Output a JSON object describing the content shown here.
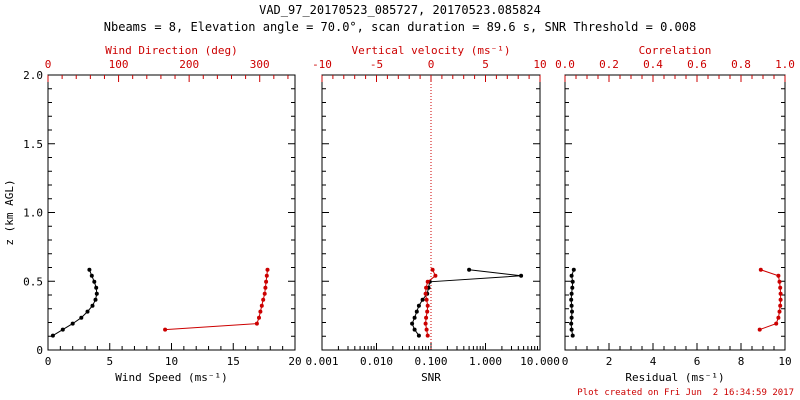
{
  "header": {
    "title": "VAD_97_20170523_085727, 20170523.085824",
    "subtitle": "Nbeams = 8, Elevation angle = 70.0°, scan duration = 89.6 s, SNR Threshold = 0.008"
  },
  "footer": {
    "created": "Plot created on Fri Jun  2 16:34:59 2017"
  },
  "colors": {
    "black": "#000000",
    "red": "#cc0000"
  },
  "chart_data": [
    {
      "type": "line",
      "panel": "wind",
      "ylabel": "z (km AGL)",
      "ylim": [
        0,
        2
      ],
      "yticks": [
        0,
        0.5,
        1,
        1.5,
        2
      ],
      "ytick_labels": [
        "0",
        "0.5",
        "1.0",
        "1.5",
        "2.0"
      ],
      "yminor": 0.1,
      "bottom_axis": {
        "label": "Wind Speed (ms⁻¹)",
        "scale": "linear",
        "range": [
          0,
          20
        ],
        "ticks": [
          0,
          5,
          10,
          15,
          20
        ],
        "tick_labels": [
          "0",
          "5",
          "10",
          "15",
          "20"
        ],
        "minor": 1,
        "color": "black"
      },
      "top_axis": {
        "label": "Wind Direction (deg)",
        "scale": "linear",
        "range": [
          0,
          350
        ],
        "ticks": [
          0,
          100,
          200,
          300
        ],
        "tick_labels": [
          "0",
          "100",
          "200",
          "300"
        ],
        "minor": 20,
        "color": "red"
      },
      "series": [
        {
          "name": "wind_speed",
          "axis": "bottom",
          "color": "black",
          "z": [
            0.105,
            0.148,
            0.192,
            0.235,
            0.279,
            0.322,
            0.366,
            0.409,
            0.453,
            0.496,
            0.54,
            0.583
          ],
          "values": [
            0.4,
            1.2,
            2.0,
            2.7,
            3.2,
            3.6,
            3.85,
            3.95,
            3.9,
            3.75,
            3.55,
            3.35
          ]
        },
        {
          "name": "wind_direction",
          "axis": "top",
          "color": "red",
          "z": [
            0.148,
            0.192,
            0.235,
            0.279,
            0.322,
            0.366,
            0.409,
            0.453,
            0.496,
            0.54,
            0.583
          ],
          "values": [
            166,
            296,
            299,
            301,
            303,
            305,
            307,
            308,
            309,
            310,
            311
          ]
        }
      ]
    },
    {
      "type": "line",
      "panel": "snr",
      "ylabel": "",
      "ylim": [
        0,
        2
      ],
      "yticks": [
        0,
        0.5,
        1,
        1.5,
        2
      ],
      "ytick_labels": [
        "0",
        "0.5",
        "1.0",
        "1.5",
        "2.0"
      ],
      "yminor": 0.1,
      "bottom_axis": {
        "label": "SNR",
        "scale": "log",
        "range": [
          0.001,
          10
        ],
        "ticks": [
          0.001,
          0.01,
          0.1,
          1,
          10
        ],
        "tick_labels": [
          "0.001",
          "0.010",
          "0.100",
          "1.000",
          "10.000"
        ],
        "color": "black"
      },
      "top_axis": {
        "label": "Vertical velocity (ms⁻¹)",
        "scale": "linear",
        "range": [
          -10,
          10
        ],
        "ticks": [
          -10,
          -5,
          0,
          5,
          10
        ],
        "tick_labels": [
          "-10",
          "-5",
          "0",
          "5",
          "10"
        ],
        "minor": 1,
        "color": "red",
        "zero_line": true
      },
      "series": [
        {
          "name": "snr",
          "axis": "bottom",
          "color": "black",
          "z": [
            0.105,
            0.148,
            0.192,
            0.235,
            0.279,
            0.322,
            0.366,
            0.409,
            0.453,
            0.496,
            0.54,
            0.583
          ],
          "values": [
            0.06,
            0.05,
            0.045,
            0.05,
            0.055,
            0.06,
            0.07,
            0.085,
            0.09,
            0.095,
            4.5,
            0.5
          ]
        },
        {
          "name": "vertical_velocity",
          "axis": "top",
          "color": "red",
          "z": [
            0.105,
            0.148,
            0.192,
            0.235,
            0.279,
            0.322,
            0.366,
            0.409,
            0.453,
            0.496,
            0.54,
            0.583
          ],
          "values": [
            -0.3,
            -0.4,
            -0.5,
            -0.45,
            -0.35,
            -0.3,
            -0.4,
            -0.5,
            -0.45,
            -0.3,
            0.4,
            0.15
          ]
        }
      ]
    },
    {
      "type": "line",
      "panel": "residual",
      "ylabel": "",
      "ylim": [
        0,
        2
      ],
      "yticks": [
        0,
        0.5,
        1,
        1.5,
        2
      ],
      "ytick_labels": [
        "0",
        "0.5",
        "1.0",
        "1.5",
        "2.0"
      ],
      "yminor": 0.1,
      "bottom_axis": {
        "label": "Residual (ms⁻¹)",
        "scale": "linear",
        "range": [
          0,
          10
        ],
        "ticks": [
          0,
          2,
          4,
          6,
          8,
          10
        ],
        "tick_labels": [
          "0",
          "2",
          "4",
          "6",
          "8",
          "10"
        ],
        "minor": 0.5,
        "color": "black"
      },
      "top_axis": {
        "label": "Correlation",
        "scale": "linear",
        "range": [
          0,
          1
        ],
        "ticks": [
          0,
          0.2,
          0.4,
          0.6,
          0.8,
          1
        ],
        "tick_labels": [
          "0.0",
          "0.2",
          "0.4",
          "0.6",
          "0.8",
          "1.0"
        ],
        "minor": 0.05,
        "color": "red"
      },
      "series": [
        {
          "name": "residual",
          "axis": "bottom",
          "color": "black",
          "z": [
            0.105,
            0.148,
            0.192,
            0.235,
            0.279,
            0.322,
            0.366,
            0.409,
            0.453,
            0.496,
            0.54,
            0.583
          ],
          "values": [
            0.35,
            0.3,
            0.28,
            0.3,
            0.32,
            0.3,
            0.28,
            0.3,
            0.33,
            0.35,
            0.3,
            0.4
          ]
        },
        {
          "name": "correlation",
          "axis": "top",
          "color": "red",
          "z": [
            0.148,
            0.192,
            0.235,
            0.279,
            0.322,
            0.366,
            0.409,
            0.453,
            0.496,
            0.54,
            0.583
          ],
          "values": [
            0.885,
            0.96,
            0.97,
            0.975,
            0.978,
            0.98,
            0.98,
            0.978,
            0.975,
            0.97,
            0.89
          ]
        }
      ]
    }
  ]
}
